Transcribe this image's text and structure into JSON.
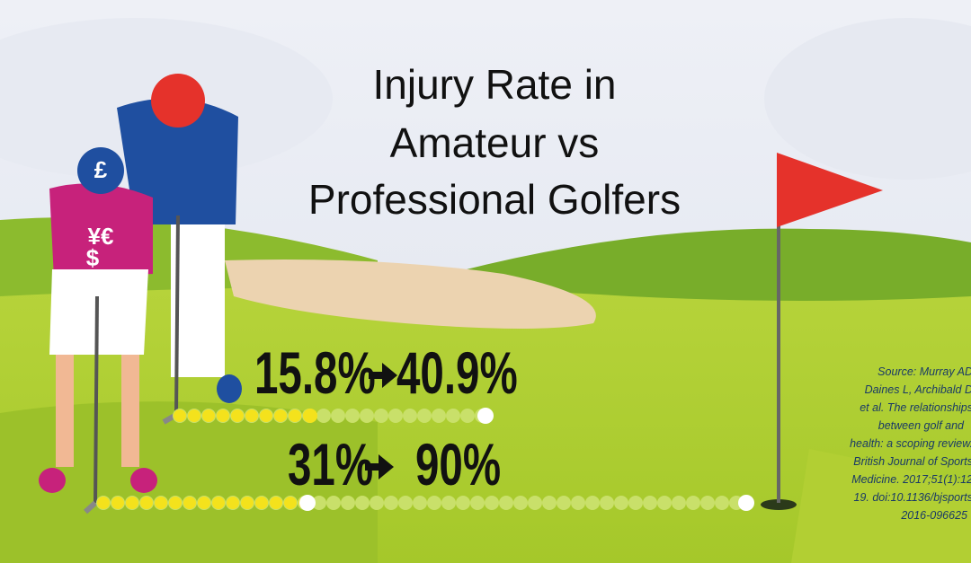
{
  "title": {
    "lines": [
      "Injury Rate in",
      "Amateur vs",
      "Professional Golfers"
    ]
  },
  "stats": [
    {
      "from": "15.8%",
      "to": "40.9%"
    },
    {
      "from": "31%",
      "to": "90%"
    }
  ],
  "source": {
    "lines": [
      "Source:  Murray AD",
      "Daines L, Archibald D",
      "et al.  The relationships",
      "between golf and",
      "health: a scoping review.",
      "British Journal of Sports",
      "Medicine. 2017;51(1):12",
      "19. doi:10.1136/bjsports",
      "2016-096625"
    ]
  }
}
